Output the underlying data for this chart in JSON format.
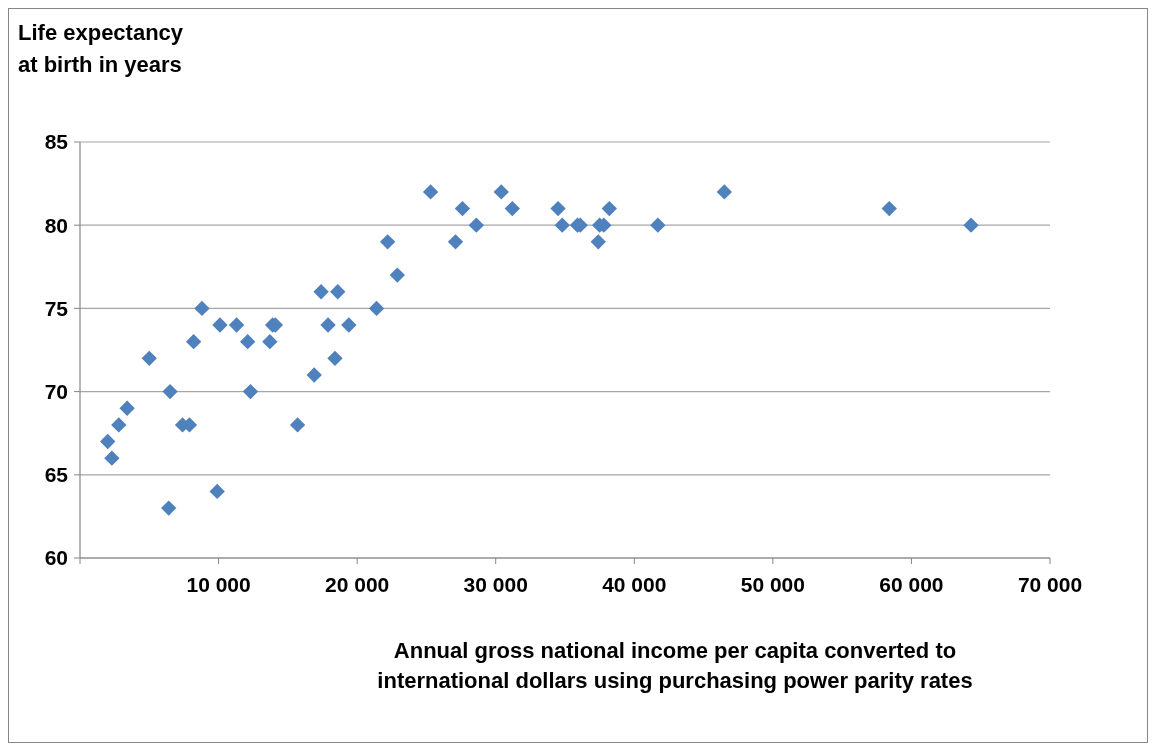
{
  "chart_data": {
    "type": "scatter",
    "ylabel": "Life expectancy\nat birth in years",
    "xlabel": "Annual gross national income per capita converted to\ninternational dollars using purchasing power parity rates",
    "x": [
      2000,
      2300,
      2800,
      3400,
      5000,
      6400,
      6500,
      7400,
      7900,
      8200,
      8800,
      9900,
      10100,
      11300,
      12100,
      12300,
      13700,
      13900,
      14100,
      15700,
      16900,
      17400,
      17900,
      18400,
      18600,
      19400,
      21400,
      22200,
      22900,
      25300,
      27100,
      27600,
      28600,
      30400,
      31200,
      34500,
      34800,
      35900,
      36100,
      37400,
      37500,
      37800,
      38200,
      41700,
      46500,
      58400,
      64300
    ],
    "series": [
      {
        "color": "#4f81bd",
        "values": [
          67,
          66,
          68,
          69,
          72,
          63,
          70,
          68,
          68,
          73,
          75,
          64,
          74,
          74,
          73,
          70,
          73,
          74,
          74,
          68,
          71,
          76,
          74,
          72,
          76,
          74,
          75,
          79,
          77,
          82,
          79,
          81,
          80,
          82,
          81,
          81,
          80,
          80,
          80,
          79,
          80,
          80,
          81,
          80,
          82,
          81,
          80
        ]
      }
    ],
    "marker": "diamond",
    "grid": "y",
    "xlim": [
      0,
      70000
    ],
    "xticks": [
      {
        "value": 0,
        "label": null
      },
      {
        "value": 10000,
        "label": "10 000"
      },
      {
        "value": 20000,
        "label": "20 000"
      },
      {
        "value": 30000,
        "label": "30 000"
      },
      {
        "value": 40000,
        "label": "40 000"
      },
      {
        "value": 50000,
        "label": "50 000"
      },
      {
        "value": 60000,
        "label": "60 000"
      },
      {
        "value": 70000,
        "label": "70 000"
      }
    ],
    "ylim": [
      60,
      85
    ],
    "yticks": [
      60,
      65,
      70,
      75,
      80,
      85
    ]
  }
}
